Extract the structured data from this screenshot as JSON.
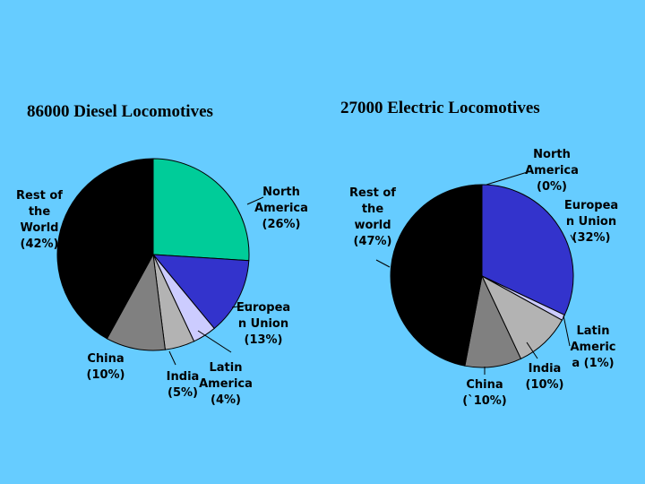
{
  "chart_data": [
    {
      "type": "pie",
      "title": "86000 Diesel Locomotives",
      "slices": [
        {
          "label": [
            "North",
            "America",
            "(26%)"
          ],
          "value": 26,
          "color": "#00cc99"
        },
        {
          "label": [
            "Europea",
            "n Union",
            "(13%)"
          ],
          "value": 13,
          "color": "#3333cc"
        },
        {
          "label": [
            "Latin",
            "America",
            "(4%)"
          ],
          "value": 4,
          "color": "#ccccff"
        },
        {
          "label": [
            "India",
            "(5%)"
          ],
          "value": 5,
          "color": "#b3b3b3"
        },
        {
          "label": [
            "China",
            "(10%)"
          ],
          "value": 10,
          "color": "#808080"
        },
        {
          "label": [
            "Rest of",
            "the",
            "World",
            "(42%)"
          ],
          "value": 42,
          "color": "#000000"
        }
      ]
    },
    {
      "type": "pie",
      "title": "27000 Electric Locomotives",
      "slices": [
        {
          "label": [
            "North",
            "America",
            "(0%)"
          ],
          "value": 0,
          "color": "#00cc99"
        },
        {
          "label": [
            "Europea",
            "n Union",
            "(32%)"
          ],
          "value": 32,
          "color": "#3333cc"
        },
        {
          "label": [
            "Latin",
            "Americ",
            "a (1%)"
          ],
          "value": 1,
          "color": "#ccccff"
        },
        {
          "label": [
            "India",
            "(10%)"
          ],
          "value": 10,
          "color": "#b3b3b3"
        },
        {
          "label": [
            "China",
            "(`10%)"
          ],
          "value": 10,
          "color": "#808080"
        },
        {
          "label": [
            "Rest of",
            "the",
            "world",
            "(47%)"
          ],
          "value": 47,
          "color": "#000000"
        }
      ]
    }
  ]
}
